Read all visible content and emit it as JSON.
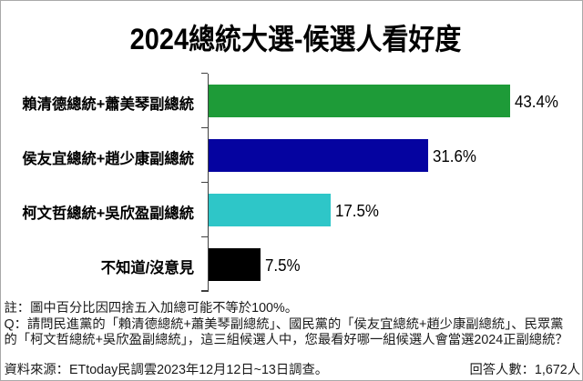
{
  "title": "2024總統大選-候選人看好度",
  "chart_data": {
    "type": "bar",
    "orientation": "horizontal",
    "title": "2024總統大選-候選人看好度",
    "categories": [
      "賴清德總統+蕭美琴副總統",
      "侯友宜總統+趙少康副總統",
      "柯文哲總統+吳欣盈副總統",
      "不知道/沒意見"
    ],
    "values": [
      43.4,
      31.6,
      17.5,
      7.5
    ],
    "value_labels": [
      "43.4%",
      "31.6%",
      "17.5%",
      "7.5%"
    ],
    "colors": [
      "#1e9b38",
      "#0503a0",
      "#2ec6c8",
      "#000000"
    ],
    "xlabel": "",
    "ylabel": "",
    "xlim": [
      0,
      54
    ],
    "grid": false,
    "legend": false
  },
  "notes": {
    "line1": "註：圖中百分比因四捨五入加總可能不等於100%。",
    "line2": "Q：請問民進黨的「賴清德總統+蕭美琴副總統」、國民黨的「侯友宜總統+趙少康副總統」、民眾黨",
    "line3": "的「柯文哲總統+吳欣盈副總統」，這三組候選人中，您最看好哪一組候選人會當選2024正副總統？",
    "source": "資料來源：ETtoday民調雲2023年12月12日~13日調查。",
    "respondents": "回答人數：1,672人"
  }
}
